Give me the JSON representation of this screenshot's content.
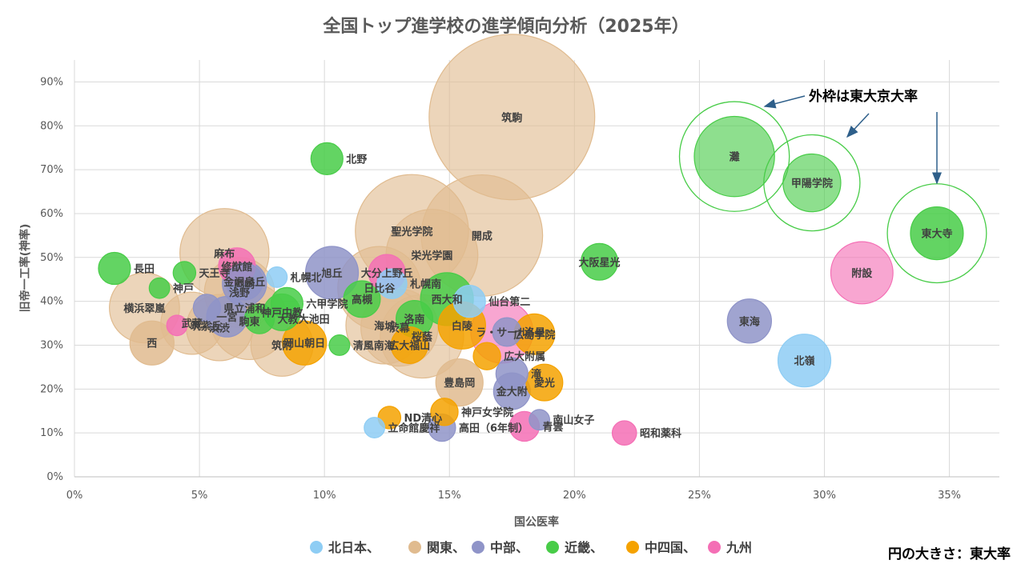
{
  "chart_data": {
    "type": "scatter",
    "title": "全国トップ進学校の進学傾向分析（2025年）",
    "xlabel": "国公医率",
    "ylabel": "旧帝一工率(神率)",
    "xlim": [
      0,
      0.37
    ],
    "ylim": [
      0,
      0.95
    ],
    "x_ticks": [
      "0%",
      "5%",
      "10%",
      "15%",
      "20%",
      "25%",
      "30%",
      "35%"
    ],
    "y_ticks": [
      "0%",
      "10%",
      "20%",
      "30%",
      "40%",
      "50%",
      "60%",
      "70%",
      "80%",
      "90%"
    ],
    "grid": true,
    "bubble_size_note": "円の大きさ：東大率",
    "outer_ring_note": "外枠は東大京大率",
    "legend": {
      "placement": "bottom",
      "entries": [
        "北日本、",
        "関東、",
        "中部、",
        "近畿、",
        "中四国、",
        "九州"
      ]
    },
    "colors": {
      "北日本": "#8ecdf4",
      "関東": "#e0bb8f",
      "中部": "#8f94c8",
      "近畿": "#48cc48",
      "中四国": "#f5a200",
      "九州": "#f46fb5"
    },
    "points": [
      {
        "name": "長田",
        "region": "近畿",
        "x": 0.016,
        "y": 0.475,
        "tokyo": 0.01
      },
      {
        "name": "神戸",
        "region": "近畿",
        "x": 0.034,
        "y": 0.43,
        "tokyo": 0.002
      },
      {
        "name": "天王寺",
        "region": "近畿",
        "x": 0.044,
        "y": 0.465,
        "tokyo": 0.003
      },
      {
        "name": "横浜翠嵐",
        "region": "関東",
        "x": 0.028,
        "y": 0.385,
        "tokyo": 0.08
      },
      {
        "name": "西",
        "region": "関東",
        "x": 0.031,
        "y": 0.305,
        "tokyo": 0.025
      },
      {
        "name": "筑紫丘",
        "region": "九州",
        "x": 0.041,
        "y": 0.345,
        "tokyo": 0.002
      },
      {
        "name": "武蔵",
        "region": "関東",
        "x": 0.047,
        "y": 0.35,
        "tokyo": 0.06
      },
      {
        "name": "県立浦和",
        "region": "中部",
        "x": 0.053,
        "y": 0.385,
        "tokyo": 0.006
      },
      {
        "name": "一宮",
        "region": "中部",
        "x": 0.061,
        "y": 0.365,
        "tokyo": 0.02
      },
      {
        "name": "修猷館",
        "region": "九州",
        "x": 0.065,
        "y": 0.48,
        "tokyo": 0.015
      },
      {
        "name": "麻布",
        "region": "関東",
        "x": 0.06,
        "y": 0.51,
        "tokyo": 0.14
      },
      {
        "name": "駒東",
        "region": "関東",
        "x": 0.07,
        "y": 0.355,
        "tokyo": 0.1
      },
      {
        "name": "渋渋",
        "region": "関東",
        "x": 0.058,
        "y": 0.34,
        "tokyo": 0.07
      },
      {
        "name": "岡崎",
        "region": "中部",
        "x": 0.068,
        "y": 0.44,
        "tokyo": 0.025
      },
      {
        "name": "浅野",
        "region": "関東",
        "x": 0.066,
        "y": 0.42,
        "tokyo": 0.08
      },
      {
        "name": "金沢泉丘",
        "region": "中部",
        "x": 0.068,
        "y": 0.445,
        "tokyo": 0.015
      },
      {
        "name": "大教大池田",
        "region": "近畿",
        "x": 0.074,
        "y": 0.36,
        "tokyo": 0.008
      },
      {
        "name": "札幌北",
        "region": "北日本",
        "x": 0.081,
        "y": 0.455,
        "tokyo": 0.002
      },
      {
        "name": "神戸中教",
        "region": "近畿",
        "x": 0.083,
        "y": 0.375,
        "tokyo": 0.015
      },
      {
        "name": "六甲学院",
        "region": "近畿",
        "x": 0.085,
        "y": 0.395,
        "tokyo": 0.01
      },
      {
        "name": "筑附",
        "region": "関東",
        "x": 0.083,
        "y": 0.3,
        "tokyo": 0.06
      },
      {
        "name": "岡山朝日",
        "region": "中四国",
        "x": 0.092,
        "y": 0.305,
        "tokyo": 0.025
      },
      {
        "name": "清風南海",
        "region": "近畿",
        "x": 0.106,
        "y": 0.3,
        "tokyo": 0.002
      },
      {
        "name": "北野",
        "region": "近畿",
        "x": 0.101,
        "y": 0.725,
        "tokyo": 0.01
      },
      {
        "name": "旭丘",
        "region": "中部",
        "x": 0.103,
        "y": 0.465,
        "tokyo": 0.04
      },
      {
        "name": "高槻",
        "region": "近畿",
        "x": 0.115,
        "y": 0.405,
        "tokyo": 0.015
      },
      {
        "name": "日比谷",
        "region": "関東",
        "x": 0.122,
        "y": 0.43,
        "tokyo": 0.12
      },
      {
        "name": "海城",
        "region": "関東",
        "x": 0.124,
        "y": 0.345,
        "tokyo": 0.1
      },
      {
        "name": "札幌南",
        "region": "北日本",
        "x": 0.127,
        "y": 0.44,
        "tokyo": 0.008
      },
      {
        "name": "大分上野丘",
        "region": "九州",
        "x": 0.125,
        "y": 0.465,
        "tokyo": 0.015
      },
      {
        "name": "聖光学院",
        "region": "関東",
        "x": 0.135,
        "y": 0.56,
        "tokyo": 0.24
      },
      {
        "name": "渋幕",
        "region": "関東",
        "x": 0.13,
        "y": 0.34,
        "tokyo": 0.1
      },
      {
        "name": "洛南",
        "region": "近畿",
        "x": 0.136,
        "y": 0.36,
        "tokyo": 0.015
      },
      {
        "name": "広大福山",
        "region": "中四国",
        "x": 0.134,
        "y": 0.3,
        "tokyo": 0.015
      },
      {
        "name": "桜蔭",
        "region": "関東",
        "x": 0.139,
        "y": 0.32,
        "tokyo": 0.12
      },
      {
        "name": "栄光学園",
        "region": "関東",
        "x": 0.143,
        "y": 0.505,
        "tokyo": 0.15
      },
      {
        "name": "西大和",
        "region": "近畿",
        "x": 0.149,
        "y": 0.405,
        "tokyo": 0.04
      },
      {
        "name": "白陵",
        "region": "中四国",
        "x": 0.155,
        "y": 0.345,
        "tokyo": 0.03
      },
      {
        "name": "開成",
        "region": "関東",
        "x": 0.163,
        "y": 0.55,
        "tokyo": 0.28
      },
      {
        "name": "仙台第二",
        "region": "北日本",
        "x": 0.158,
        "y": 0.4,
        "tokyo": 0.01
      },
      {
        "name": "ラ・サール",
        "region": "九州",
        "x": 0.171,
        "y": 0.33,
        "tokyo": 0.06
      },
      {
        "name": "洛星",
        "region": "中部",
        "x": 0.173,
        "y": 0.33,
        "tokyo": 0.007
      },
      {
        "name": "広島学院",
        "region": "中四国",
        "x": 0.184,
        "y": 0.325,
        "tokyo": 0.02
      },
      {
        "name": "広大附属",
        "region": "中四国",
        "x": 0.165,
        "y": 0.275,
        "tokyo": 0.006
      },
      {
        "name": "豊島岡",
        "region": "関東",
        "x": 0.154,
        "y": 0.215,
        "tokyo": 0.03
      },
      {
        "name": "ND清心",
        "region": "中四国",
        "x": 0.126,
        "y": 0.135,
        "tokyo": 0.003
      },
      {
        "name": "立命館慶祥",
        "region": "北日本",
        "x": 0.12,
        "y": 0.112,
        "tokyo": 0.002
      },
      {
        "name": "高田（6年制）",
        "region": "中部",
        "x": 0.147,
        "y": 0.112,
        "tokyo": 0.006
      },
      {
        "name": "神戸女学院",
        "region": "中四国",
        "x": 0.148,
        "y": 0.148,
        "tokyo": 0.006
      },
      {
        "name": "筑駒",
        "region": "関東",
        "x": 0.175,
        "y": 0.82,
        "tokyo": 0.55
      },
      {
        "name": "滝",
        "region": "中部",
        "x": 0.175,
        "y": 0.235,
        "tokyo": 0.01
      },
      {
        "name": "金大附",
        "region": "中部",
        "x": 0.175,
        "y": 0.195,
        "tokyo": 0.015
      },
      {
        "name": "愛光",
        "region": "中四国",
        "x": 0.188,
        "y": 0.215,
        "tokyo": 0.015
      },
      {
        "name": "青雲",
        "region": "九州",
        "x": 0.18,
        "y": 0.115,
        "tokyo": 0.008
      },
      {
        "name": "南山女子",
        "region": "中部",
        "x": 0.186,
        "y": 0.13,
        "tokyo": 0.002
      },
      {
        "name": "大阪星光",
        "region": "近畿",
        "x": 0.21,
        "y": 0.49,
        "tokyo": 0.015
      },
      {
        "name": "昭和薬科",
        "region": "九州",
        "x": 0.22,
        "y": 0.1,
        "tokyo": 0.004
      },
      {
        "name": "灘",
        "region": "近畿",
        "x": 0.264,
        "y": 0.73,
        "tokyo": 0.11,
        "tokyo_kyoto": 0.17
      },
      {
        "name": "甲陽学院",
        "region": "近畿",
        "x": 0.295,
        "y": 0.67,
        "tokyo": 0.05,
        "tokyo_kyoto": 0.12
      },
      {
        "name": "東大寺",
        "region": "近畿",
        "x": 0.345,
        "y": 0.555,
        "tokyo": 0.04,
        "tokyo_kyoto": 0.13
      },
      {
        "name": "東海",
        "region": "中部",
        "x": 0.27,
        "y": 0.355,
        "tokyo": 0.025
      },
      {
        "name": "附設",
        "region": "九州",
        "x": 0.315,
        "y": 0.465,
        "tokyo": 0.06
      },
      {
        "name": "北嶺",
        "region": "北日本",
        "x": 0.292,
        "y": 0.265,
        "tokyo": 0.04
      }
    ]
  }
}
